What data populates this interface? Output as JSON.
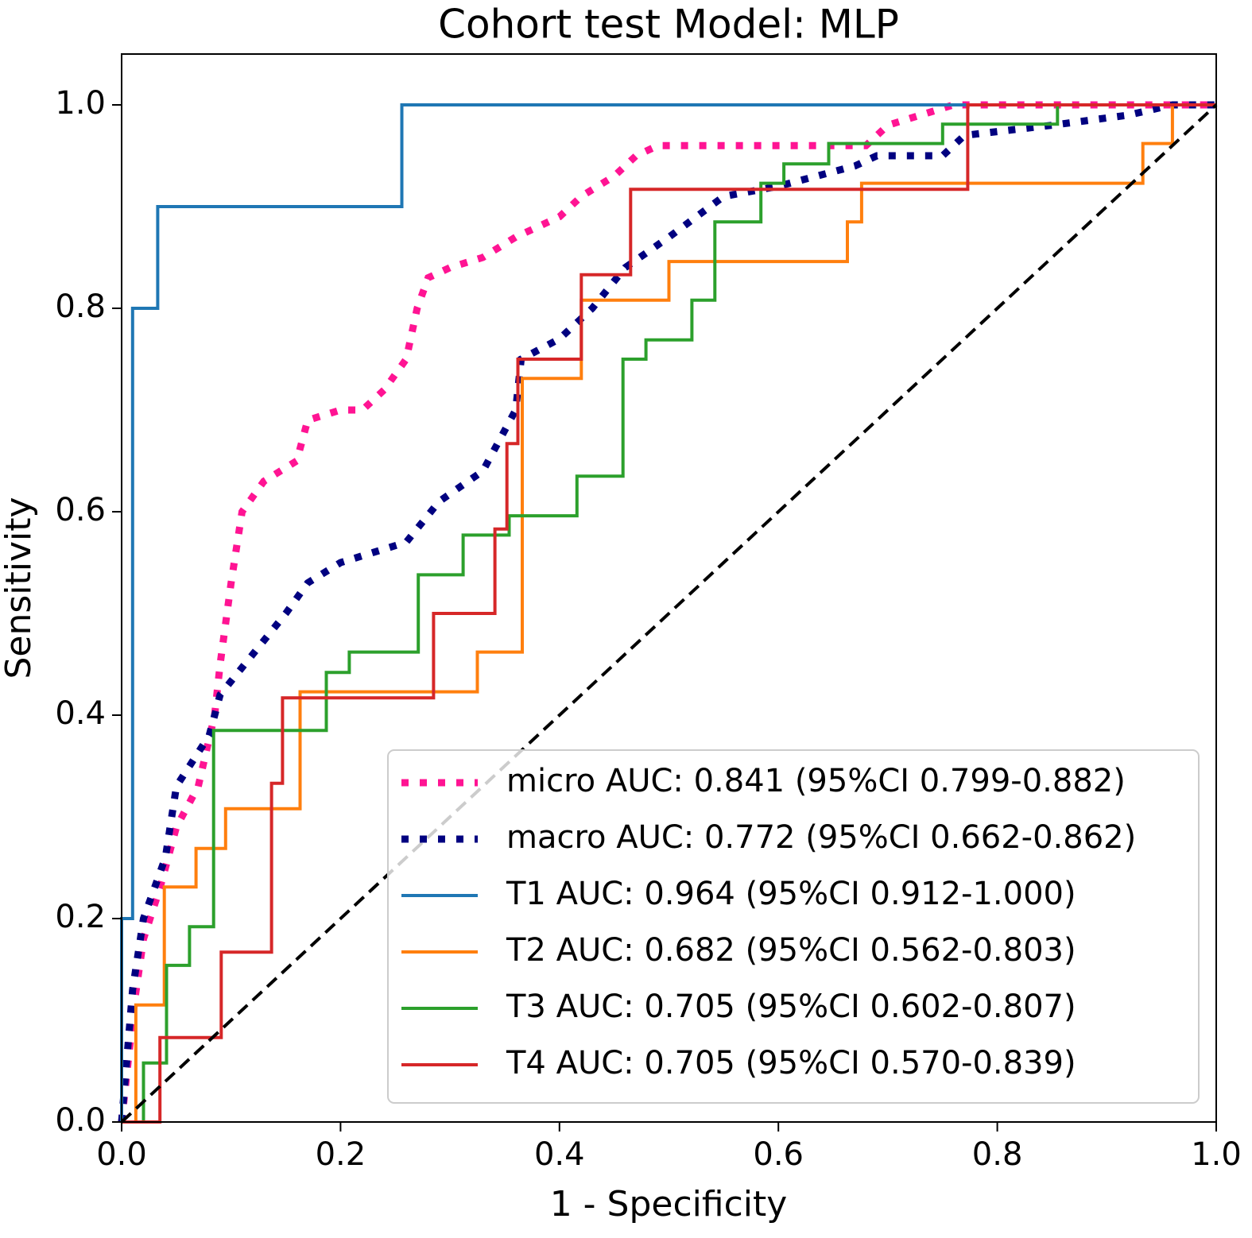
{
  "chart_data": {
    "type": "line",
    "title": "Cohort test Model: MLP",
    "x_label": "1 - Specificity",
    "y_label": "Sensitivity",
    "xlim": [
      0,
      1
    ],
    "ylim": [
      0,
      1.05
    ],
    "xticks": [
      {
        "value": 0,
        "label": "0.0"
      },
      0.2,
      0.4,
      0.6,
      0.8,
      {
        "value": 1,
        "label": "1.0"
      }
    ],
    "yticks": [
      {
        "value": 0,
        "label": "0.0"
      },
      0.2,
      0.4,
      0.6,
      0.8,
      {
        "value": 1,
        "label": "1.0"
      }
    ],
    "legend": "lower right",
    "series": [
      {
        "name": "micro AUC: 0.841 (95%CI 0.799-0.882)",
        "color": "#ff1493",
        "style": "dotted",
        "x": [
          0,
          0.005,
          0.012,
          0.02,
          0.035,
          0.05,
          0.07,
          0.085,
          0.09,
          0.1,
          0.11,
          0.13,
          0.16,
          0.17,
          0.2,
          0.22,
          0.24,
          0.26,
          0.27,
          0.28,
          0.3,
          0.33,
          0.36,
          0.4,
          0.42,
          0.45,
          0.47,
          0.49,
          0.6,
          0.68,
          0.7,
          0.73,
          0.76,
          1
        ],
        "values": [
          0,
          0.05,
          0.12,
          0.18,
          0.23,
          0.29,
          0.33,
          0.4,
          0.45,
          0.53,
          0.6,
          0.63,
          0.65,
          0.69,
          0.7,
          0.7,
          0.72,
          0.75,
          0.8,
          0.83,
          0.84,
          0.85,
          0.87,
          0.89,
          0.91,
          0.93,
          0.95,
          0.96,
          0.96,
          0.96,
          0.98,
          0.99,
          1,
          1
        ]
      },
      {
        "name": "macro AUC: 0.772 (95%CI 0.662-0.862)",
        "color": "#000080",
        "style": "dotted",
        "x": [
          0,
          0.01,
          0.02,
          0.04,
          0.05,
          0.08,
          0.09,
          0.12,
          0.15,
          0.17,
          0.2,
          0.26,
          0.29,
          0.33,
          0.36,
          0.365,
          0.4,
          0.43,
          0.46,
          0.5,
          0.55,
          0.6,
          0.67,
          0.69,
          0.75,
          0.77,
          0.85,
          0.92,
          0.96,
          1
        ],
        "values": [
          0,
          0.13,
          0.2,
          0.26,
          0.33,
          0.38,
          0.42,
          0.46,
          0.5,
          0.53,
          0.55,
          0.57,
          0.61,
          0.64,
          0.7,
          0.75,
          0.77,
          0.8,
          0.84,
          0.87,
          0.91,
          0.92,
          0.94,
          0.95,
          0.95,
          0.97,
          0.98,
          0.99,
          1,
          1
        ]
      },
      {
        "name": "T1 AUC: 0.964 (95%CI 0.912-1.000)",
        "color": "#1f77b4",
        "style": "solid",
        "x": [
          0,
          0,
          0.01,
          0.01,
          0.033,
          0.033,
          0.256,
          0.256,
          1
        ],
        "values": [
          0,
          0.2,
          0.2,
          0.8,
          0.8,
          0.9,
          0.9,
          1,
          1
        ]
      },
      {
        "name": "T2 AUC: 0.682 (95%CI 0.562-0.803)",
        "color": "#ff7f0e",
        "style": "solid",
        "x": [
          0,
          0.013,
          0.013,
          0.039,
          0.039,
          0.068,
          0.068,
          0.095,
          0.095,
          0.163,
          0.163,
          0.325,
          0.325,
          0.366,
          0.366,
          0.42,
          0.42,
          0.5,
          0.5,
          0.663,
          0.663,
          0.676,
          0.676,
          0.933,
          0.933,
          0.96,
          0.96,
          1
        ],
        "values": [
          0,
          0,
          0.115,
          0.115,
          0.231,
          0.231,
          0.269,
          0.269,
          0.308,
          0.308,
          0.423,
          0.423,
          0.462,
          0.462,
          0.731,
          0.731,
          0.808,
          0.808,
          0.846,
          0.846,
          0.885,
          0.885,
          0.923,
          0.923,
          0.962,
          0.962,
          1,
          1
        ]
      },
      {
        "name": "T3 AUC: 0.705 (95%CI 0.602-0.807)",
        "color": "#2ca02c",
        "style": "solid",
        "x": [
          0,
          0.02,
          0.02,
          0.041,
          0.041,
          0.062,
          0.062,
          0.084,
          0.084,
          0.187,
          0.187,
          0.208,
          0.208,
          0.271,
          0.271,
          0.312,
          0.312,
          0.354,
          0.354,
          0.416,
          0.416,
          0.458,
          0.458,
          0.479,
          0.479,
          0.521,
          0.521,
          0.542,
          0.542,
          0.584,
          0.584,
          0.605,
          0.605,
          0.646,
          0.646,
          0.75,
          0.75,
          0.855,
          0.855,
          1
        ],
        "values": [
          0,
          0,
          0.058,
          0.058,
          0.154,
          0.154,
          0.192,
          0.192,
          0.385,
          0.385,
          0.442,
          0.442,
          0.462,
          0.462,
          0.538,
          0.538,
          0.577,
          0.577,
          0.596,
          0.596,
          0.635,
          0.635,
          0.75,
          0.75,
          0.769,
          0.769,
          0.808,
          0.808,
          0.885,
          0.885,
          0.923,
          0.923,
          0.942,
          0.942,
          0.962,
          0.962,
          0.981,
          0.981,
          1,
          1
        ]
      },
      {
        "name": "T4 AUC: 0.705 (95%CI 0.570-0.839)",
        "color": "#d62728",
        "style": "solid",
        "x": [
          0,
          0.035,
          0.035,
          0.091,
          0.091,
          0.137,
          0.137,
          0.147,
          0.147,
          0.285,
          0.285,
          0.341,
          0.341,
          0.352,
          0.352,
          0.362,
          0.362,
          0.42,
          0.42,
          0.465,
          0.465,
          0.773,
          0.773,
          1
        ],
        "values": [
          0,
          0,
          0.083,
          0.083,
          0.167,
          0.167,
          0.333,
          0.333,
          0.417,
          0.417,
          0.5,
          0.5,
          0.583,
          0.583,
          0.667,
          0.667,
          0.75,
          0.75,
          0.833,
          0.833,
          0.917,
          0.917,
          1,
          1
        ]
      }
    ]
  }
}
